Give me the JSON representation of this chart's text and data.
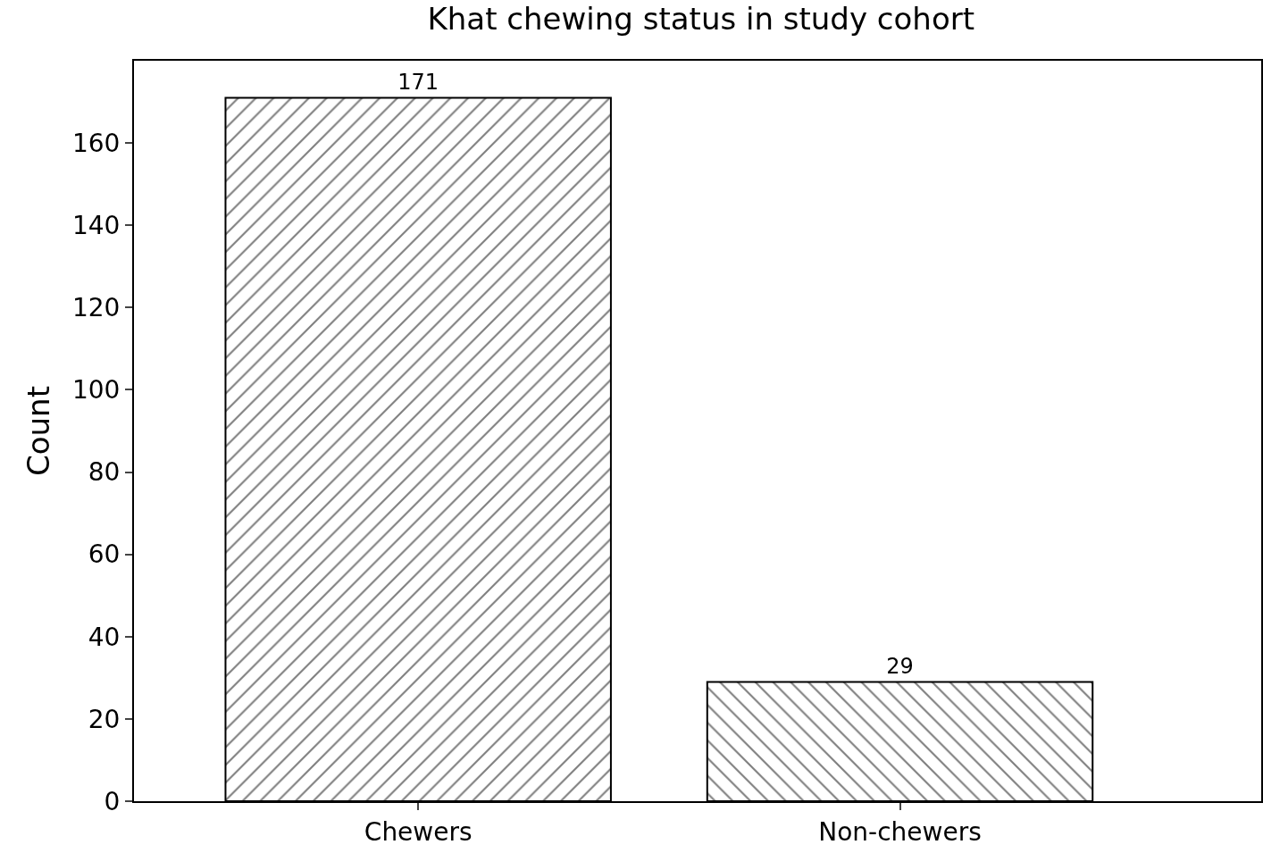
{
  "chart_data": {
    "type": "bar",
    "title": "Khat chewing status in study cohort",
    "ylabel": "Count",
    "categories": [
      "Chewers",
      "Non-chewers"
    ],
    "values": [
      171,
      29
    ],
    "color": "#000000",
    "ylim": [
      0,
      180
    ],
    "yticks": [
      0,
      20,
      40,
      60,
      80,
      100,
      120,
      140,
      160
    ],
    "data_labels": true
  }
}
